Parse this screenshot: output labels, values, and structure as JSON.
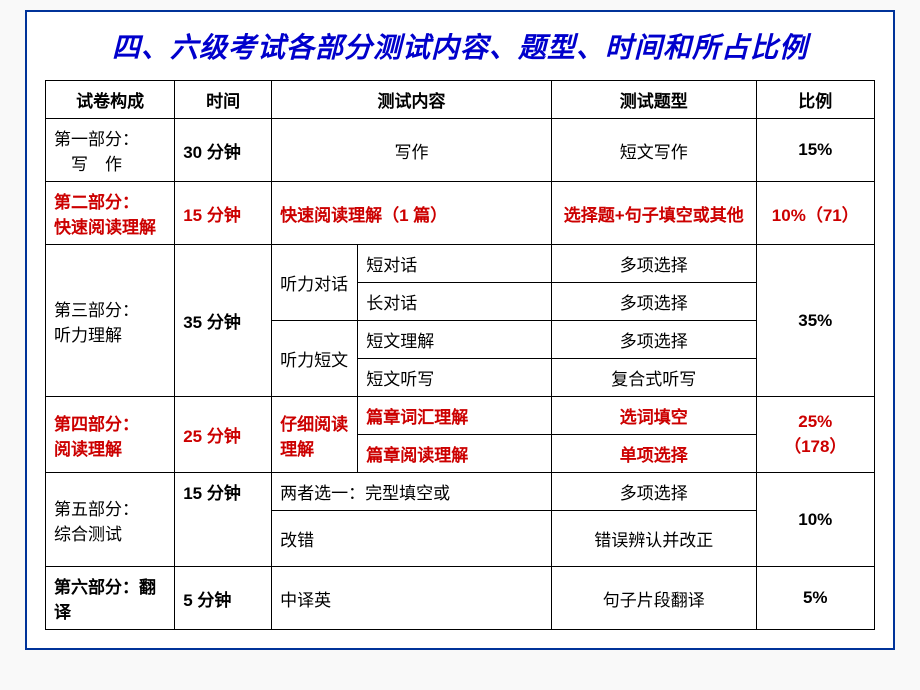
{
  "title": "四、六级考试各部分测试内容、题型、时间和所占比例",
  "headers": {
    "structure": "试卷构成",
    "time": "时间",
    "content": "测试内容",
    "qtype": "测试题型",
    "ratio": "比例"
  },
  "row1": {
    "structure_a": "第一部分：",
    "structure_b": "　写　作",
    "time": "30 分钟",
    "content": "写作",
    "qtype": "短文写作",
    "ratio": "15%"
  },
  "row2": {
    "structure_a": "第二部分：",
    "structure_b": "快速阅读理解",
    "time": "15 分钟",
    "content": "快速阅读理解（1 篇）",
    "qtype": "选择题+句子填空或其他",
    "ratio": "10%（71）"
  },
  "row3": {
    "structure_a": "第三部分：",
    "structure_b": "听力理解",
    "time": "35 分钟",
    "c1a": "听力对话",
    "c1b": "听力短文",
    "c2a": "短对话",
    "c2b": "长对话",
    "c2c": "短文理解",
    "c2d": "短文听写",
    "qa": "多项选择",
    "qb": "多项选择",
    "qc": "多项选择",
    "qd": "复合式听写",
    "ratio": "35%"
  },
  "row4": {
    "structure_a": "第四部分：",
    "structure_b": "阅读理解",
    "time": "25 分钟",
    "c1": "仔细阅读理解",
    "c2a": "篇章词汇理解",
    "c2b": "篇章阅读理解",
    "qa": "选词填空",
    "qb": "单项选择",
    "ratio_a": "25%",
    "ratio_b": "（178）"
  },
  "row5": {
    "structure_a": "第五部分：",
    "structure_b": "综合测试",
    "time": "15 分钟",
    "c_a": "两者选一：完型填空或",
    "c_b": "改错",
    "qa": "多项选择",
    "qb": "错误辨认并改正",
    "ratio": "10%"
  },
  "row6": {
    "structure": "第六部分：翻译",
    "time": "5 分钟",
    "content": "中译英",
    "qtype": "句子片段翻译",
    "ratio": "5%"
  },
  "colors": {
    "title": "#0000cc",
    "border": "#003399",
    "red": "#cc0000",
    "black": "#000000",
    "bg": "#ffffff"
  }
}
